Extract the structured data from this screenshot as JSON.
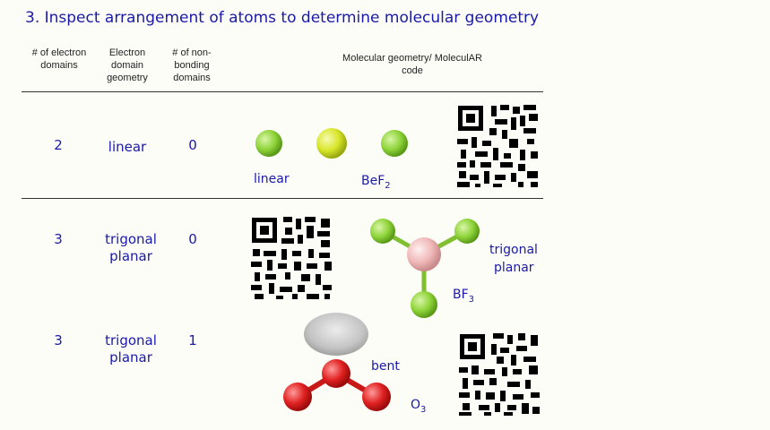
{
  "title": "3.  Inspect arrangement of atoms to determine molecular geometry",
  "headers": {
    "col1": "# of electron domains",
    "col2": "Electron domain geometry",
    "col3": "# of non-bonding domains",
    "col4": "Molecular geometry/ MoleculAR code"
  },
  "rows": [
    {
      "electron_domains": "2",
      "domain_geometry": "linear",
      "nonbonding": "0",
      "geometry_label": "linear",
      "formula_base": "BeF",
      "formula_sub": "2"
    },
    {
      "electron_domains": "3",
      "domain_geometry_line1": "trigonal",
      "domain_geometry_line2": "planar",
      "nonbonding": "0",
      "geometry_line1": "trigonal",
      "geometry_line2": "planar",
      "formula_base": "BF",
      "formula_sub": "3"
    },
    {
      "electron_domains": "3",
      "domain_geometry_line1": "trigonal",
      "domain_geometry_line2": "planar",
      "nonbonding": "1",
      "geometry_label": "bent",
      "formula_base": "O",
      "formula_sub": "3"
    }
  ],
  "colors": {
    "title": "#1a1aa8",
    "fluorine": "#8fd43a",
    "beryllium": "#d8e62a",
    "boron": "#f0b8b8",
    "oxygen": "#e02020",
    "lone_pair": "#bdbdbd"
  },
  "icons": [
    "molecule-bef2-icon",
    "molecule-bf3-icon",
    "molecule-o3-icon",
    "qr-code-icon"
  ]
}
